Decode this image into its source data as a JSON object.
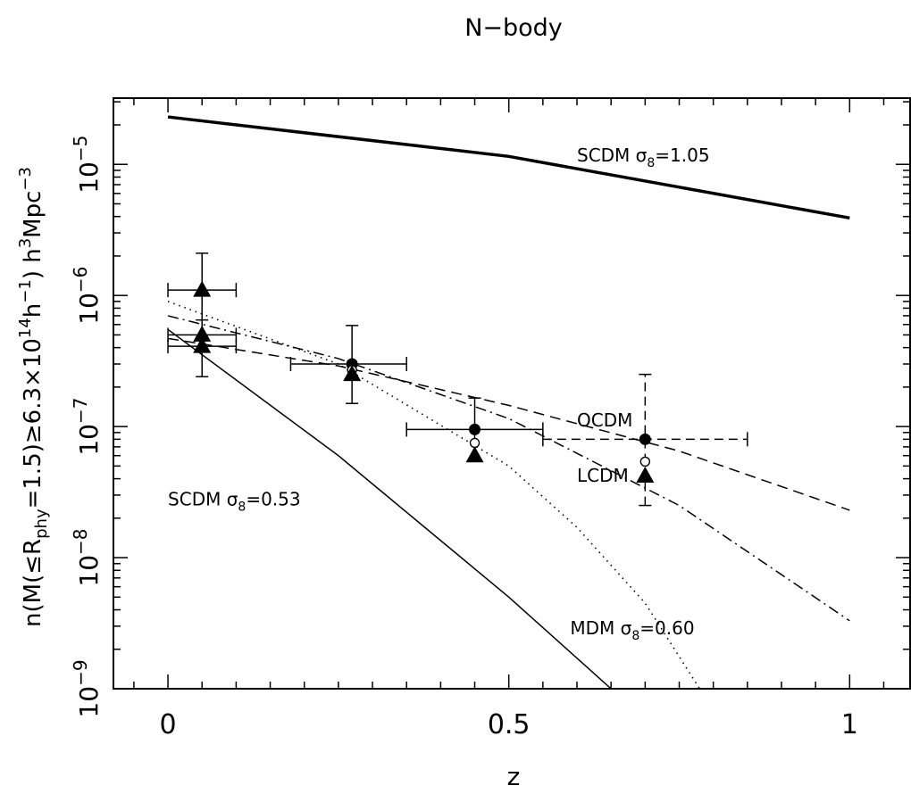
{
  "chart_data": {
    "type": "line",
    "title": "N−body",
    "xlabel": "z",
    "ylabel": {
      "parts": [
        "n(M(≤R",
        "phy",
        "=1.5)≥6.3×10",
        "14",
        "h",
        "−1",
        ")   h",
        "3",
        "Mpc",
        "−3"
      ]
    },
    "xlim": [
      -0.08,
      1.09
    ],
    "ylim": [
      1e-09,
      3.2e-05
    ],
    "yscale": "log",
    "xticks": [
      {
        "value": 0,
        "label": "0"
      },
      {
        "value": 0.5,
        "label": "0.5"
      },
      {
        "value": 1,
        "label": "1"
      }
    ],
    "yticks": [
      {
        "value": 1e-09,
        "base": "10",
        "exp": "−9"
      },
      {
        "value": 1e-08,
        "base": "10",
        "exp": "−8"
      },
      {
        "value": 1e-07,
        "base": "10",
        "exp": "−7"
      },
      {
        "value": 1e-06,
        "base": "10",
        "exp": "−6"
      },
      {
        "value": 1e-05,
        "base": "10",
        "exp": "−5"
      }
    ],
    "grid": false,
    "legend": "none",
    "series": [
      {
        "style": "thick-solid",
        "x": [
          0,
          0.5,
          1
        ],
        "y": [
          2.3e-05,
          1.15e-05,
          3.9e-06
        ]
      },
      {
        "style": "dashed",
        "x": [
          0,
          0.25,
          0.5,
          0.75,
          1
        ],
        "y": [
          4.7e-07,
          2.9e-07,
          1.45e-07,
          6.5e-08,
          2.3e-08
        ]
      },
      {
        "style": "dash-dot",
        "x": [
          0,
          0.25,
          0.5,
          0.75,
          1
        ],
        "y": [
          7e-07,
          3.3e-07,
          1.15e-07,
          2.5e-08,
          3.3e-09
        ]
      },
      {
        "style": "dotted",
        "x": [
          0,
          0.25,
          0.5,
          0.6,
          0.7,
          0.78
        ],
        "y": [
          9e-07,
          3e-07,
          5e-08,
          1.7e-08,
          4.5e-09,
          1e-09
        ]
      },
      {
        "style": "thin-solid",
        "x": [
          0,
          0.25,
          0.5,
          0.65
        ],
        "y": [
          5.5e-07,
          6e-08,
          5e-09,
          1e-09
        ]
      }
    ],
    "points": [
      {
        "marker": "triangle",
        "x": 0.05,
        "y": 1.1e-06,
        "xerr": [
          0.0,
          0.1
        ],
        "yerr": [
          4.8e-07,
          2.1e-06
        ],
        "err_style": "solid"
      },
      {
        "marker": "triangle",
        "x": 0.05,
        "y": 5e-07,
        "xerr": [
          0.0,
          0.1
        ],
        "yerr": [
          2.4e-07,
          6.5e-07
        ],
        "err_style": "solid"
      },
      {
        "marker": "triangle",
        "x": 0.05,
        "y": 4.1e-07,
        "xerr": [
          0.0,
          0.1
        ],
        "yerr": null,
        "err_style": "solid"
      },
      {
        "marker": "filled-circle",
        "x": 0.27,
        "y": 3e-07,
        "xerr": [
          0.18,
          0.35
        ],
        "yerr": [
          1.5e-07,
          5.9e-07
        ],
        "err_style": "solid"
      },
      {
        "marker": "open-circle",
        "x": 0.27,
        "y": 2.7e-07,
        "xerr": null,
        "yerr": null,
        "err_style": "solid"
      },
      {
        "marker": "triangle",
        "x": 0.27,
        "y": 2.5e-07,
        "xerr": null,
        "yerr": null,
        "err_style": "solid"
      },
      {
        "marker": "filled-circle",
        "x": 0.45,
        "y": 9.5e-08,
        "xerr": [
          0.35,
          0.55
        ],
        "yerr": [
          5.5e-08,
          1.65e-07
        ],
        "err_style": "solid"
      },
      {
        "marker": "open-circle",
        "x": 0.45,
        "y": 7.5e-08,
        "xerr": null,
        "yerr": null,
        "err_style": "solid"
      },
      {
        "marker": "triangle",
        "x": 0.45,
        "y": 6e-08,
        "xerr": null,
        "yerr": null,
        "err_style": "solid"
      },
      {
        "marker": "filled-circle",
        "x": 0.7,
        "y": 8e-08,
        "xerr": [
          0.55,
          0.85
        ],
        "yerr": [
          2.5e-08,
          2.5e-07
        ],
        "err_style": "dashed"
      },
      {
        "marker": "open-circle",
        "x": 0.7,
        "y": 5.4e-08,
        "xerr": null,
        "yerr": null,
        "err_style": "dashed"
      },
      {
        "marker": "triangle",
        "x": 0.7,
        "y": 4.2e-08,
        "xerr": null,
        "yerr": null,
        "err_style": "dashed"
      }
    ],
    "annotations": [
      {
        "pre": "SCDM  σ",
        "sub": "8",
        "post": "=1.05",
        "x": 0.6,
        "y": 1.05e-05
      },
      {
        "pre": "OCDM",
        "sub": "",
        "post": "",
        "x": 0.6,
        "y": 1e-07
      },
      {
        "pre": "LCDM",
        "sub": "",
        "post": "",
        "x": 0.6,
        "y": 3.8e-08
      },
      {
        "pre": "SCDM  σ",
        "sub": "8",
        "post": "=0.53",
        "x": 0.0,
        "y": 2.5e-08
      },
      {
        "pre": "MDM  σ",
        "sub": "8",
        "post": "=0.60",
        "x": 0.59,
        "y": 2.6e-09
      }
    ]
  }
}
